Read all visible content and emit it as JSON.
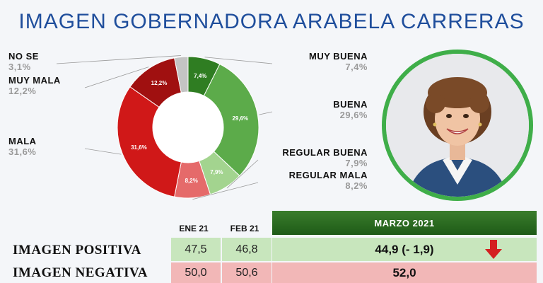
{
  "header": {
    "title": "IMAGEN GOBERNADORA ARABELA CARRERAS"
  },
  "chart_data": {
    "type": "pie",
    "title": "IMAGEN GOBERNADORA ARABELA CARRERAS",
    "categories": [
      "MUY BUENA",
      "BUENA",
      "REGULAR BUENA",
      "REGULAR MALA",
      "MALA",
      "MUY MALA",
      "NO SE"
    ],
    "values": [
      7.4,
      29.6,
      7.9,
      8.2,
      31.6,
      12.2,
      3.1
    ],
    "slice_labels": [
      "7,4%",
      "29,6%",
      "7,9%",
      "8,2%",
      "31,6%",
      "12,2%",
      ""
    ],
    "legend_pct": [
      "7,4%",
      "29,6%",
      "7,9%",
      "8,2%",
      "31,6%",
      "12,2%",
      "3,1%"
    ],
    "colors": [
      "#2f7d22",
      "#5cab4a",
      "#a3d48f",
      "#e56a6a",
      "#d01818",
      "#a01010",
      "#c4c4c4"
    ],
    "donut": true
  },
  "table": {
    "col_ene": "ENE 21",
    "col_feb": "FEB 21",
    "col_marzo": "MARZO 2021",
    "rows": [
      {
        "label": "IMAGEN POSITIVA",
        "ene": "47,5",
        "feb": "46,8",
        "marzo": "44,9 (- 1,9)"
      },
      {
        "label": "IMAGEN NEGATIVA",
        "ene": "50,0",
        "feb": "50,6",
        "marzo": "52,0"
      }
    ]
  },
  "colors": {
    "title": "#1f4e9c",
    "trend_down": "#d42020",
    "photo_ring": "#3fae49"
  },
  "icons": {
    "trend": "down-arrow-icon"
  }
}
